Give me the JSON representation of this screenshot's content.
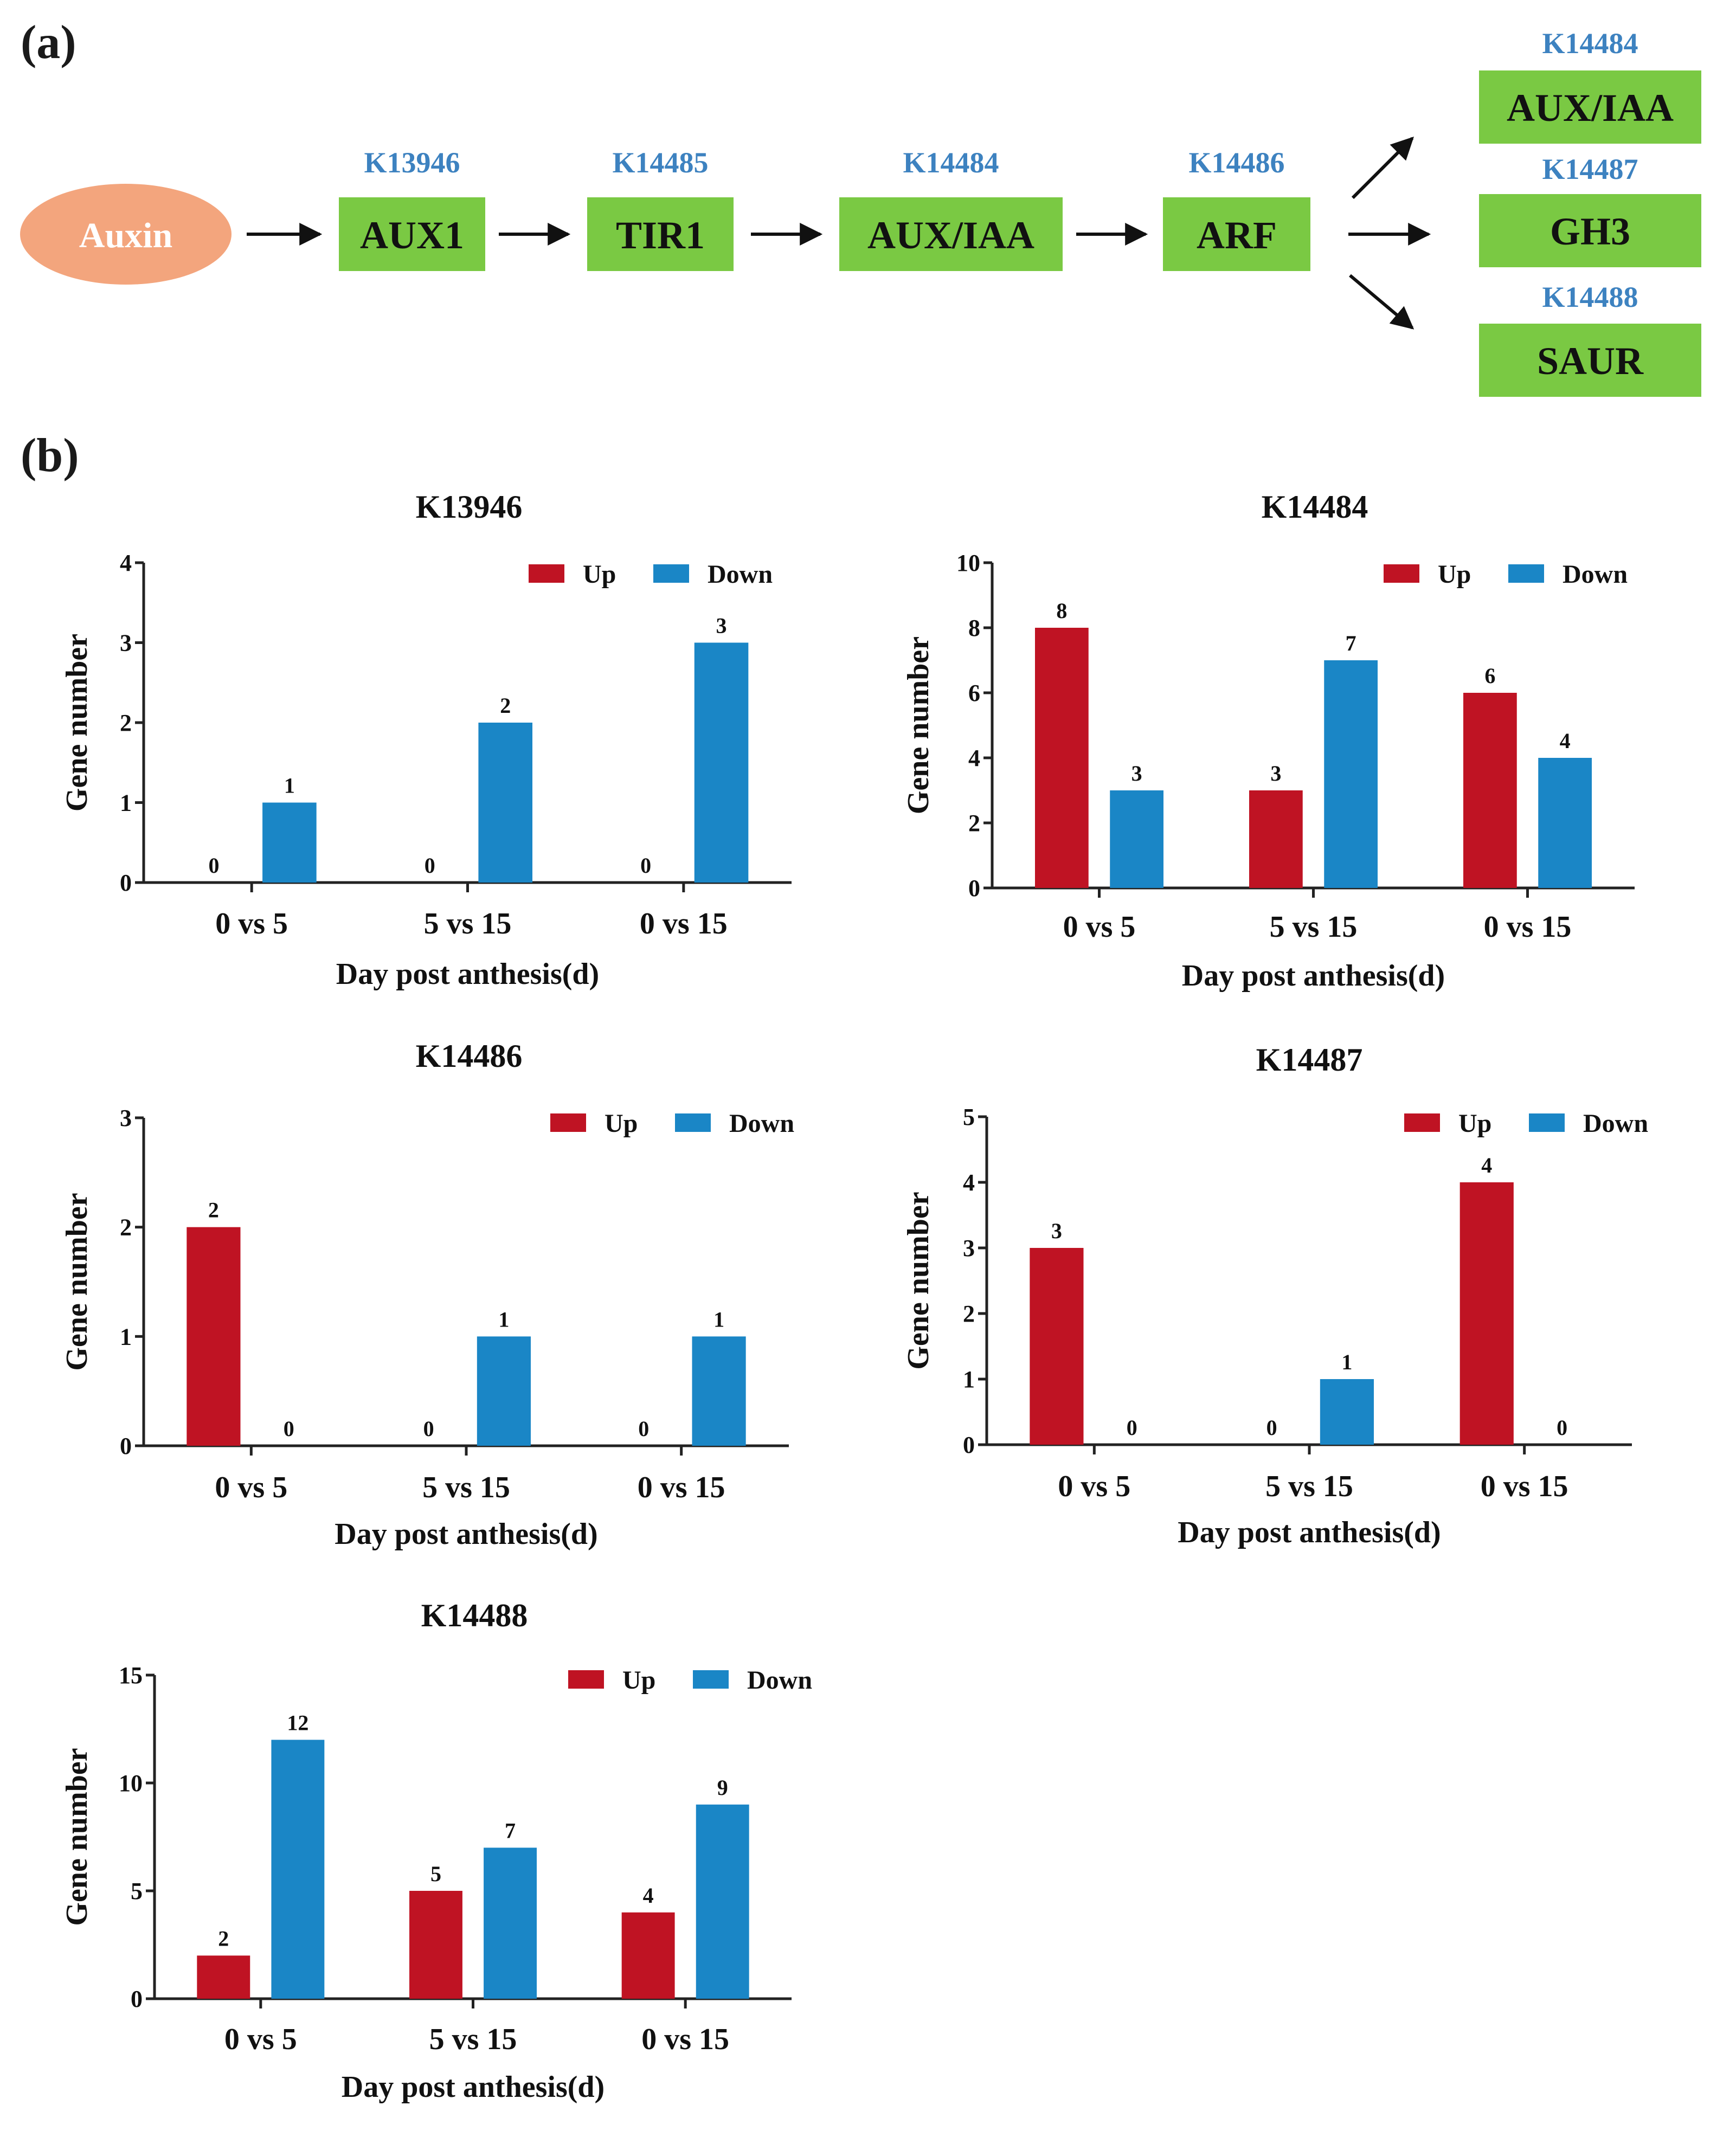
{
  "panels": {
    "a": "(a)",
    "b": "(b)"
  },
  "colors": {
    "up": "#bf1323",
    "down": "#1a86c6",
    "node": "#7ac943",
    "kegg_code": "#3d82c0",
    "source": "#f3a57d",
    "axis": "#222222"
  },
  "pathway": {
    "source": "Auxin",
    "chain": [
      {
        "code": "K13946",
        "label": "AUX1"
      },
      {
        "code": "K14485",
        "label": "TIR1"
      },
      {
        "code": "K14484",
        "label": "AUX/IAA"
      },
      {
        "code": "K14486",
        "label": "ARF"
      }
    ],
    "outputs": [
      {
        "code": "K14484",
        "label": "AUX/IAA"
      },
      {
        "code": "K14487",
        "label": "GH3"
      },
      {
        "code": "K14488",
        "label": "SAUR"
      }
    ]
  },
  "chart_data": [
    {
      "type": "bar",
      "title": "K13946",
      "categories": [
        "0 vs 5",
        "5 vs 15",
        "0 vs 15"
      ],
      "series": [
        {
          "name": "Up",
          "values": [
            0,
            0,
            0
          ]
        },
        {
          "name": "Down",
          "values": [
            1,
            2,
            3
          ]
        }
      ],
      "xlabel": "Day post anthesis(d)",
      "ylabel": "Gene number",
      "ylim": [
        0,
        4
      ],
      "yticks": [
        0,
        1,
        2,
        3,
        4
      ],
      "legend": "top-right"
    },
    {
      "type": "bar",
      "title": "K14484",
      "categories": [
        "0 vs 5",
        "5 vs 15",
        "0 vs 15"
      ],
      "series": [
        {
          "name": "Up",
          "values": [
            8,
            3,
            6
          ]
        },
        {
          "name": "Down",
          "values": [
            3,
            7,
            4
          ]
        }
      ],
      "xlabel": "Day post anthesis(d)",
      "ylabel": "Gene number",
      "ylim": [
        0,
        10
      ],
      "yticks": [
        0,
        2,
        4,
        6,
        8,
        10
      ],
      "legend": "top-right"
    },
    {
      "type": "bar",
      "title": "K14486",
      "categories": [
        "0 vs 5",
        "5 vs 15",
        "0 vs 15"
      ],
      "series": [
        {
          "name": "Up",
          "values": [
            2,
            0,
            0
          ]
        },
        {
          "name": "Down",
          "values": [
            0,
            1,
            1
          ]
        }
      ],
      "xlabel": "Day post anthesis(d)",
      "ylabel": "Gene number",
      "ylim": [
        0,
        3
      ],
      "yticks": [
        0,
        1,
        2,
        3
      ],
      "legend": "top-right"
    },
    {
      "type": "bar",
      "title": "K14487",
      "categories": [
        "0 vs 5",
        "5 vs 15",
        "0 vs 15"
      ],
      "series": [
        {
          "name": "Up",
          "values": [
            3,
            0,
            4
          ]
        },
        {
          "name": "Down",
          "values": [
            0,
            1,
            0
          ]
        }
      ],
      "xlabel": "Day post anthesis(d)",
      "ylabel": "Gene number",
      "ylim": [
        0,
        5
      ],
      "yticks": [
        0,
        1,
        2,
        3,
        4,
        5
      ],
      "legend": "top-right"
    },
    {
      "type": "bar",
      "title": "K14488",
      "categories": [
        "0 vs 5",
        "5 vs 15",
        "0 vs 15"
      ],
      "series": [
        {
          "name": "Up",
          "values": [
            2,
            5,
            4
          ]
        },
        {
          "name": "Down",
          "values": [
            12,
            7,
            9
          ]
        }
      ],
      "xlabel": "Day post anthesis(d)",
      "ylabel": "Gene number",
      "ylim": [
        0,
        15
      ],
      "yticks": [
        0,
        5,
        10,
        15
      ],
      "legend": "top-right"
    }
  ]
}
